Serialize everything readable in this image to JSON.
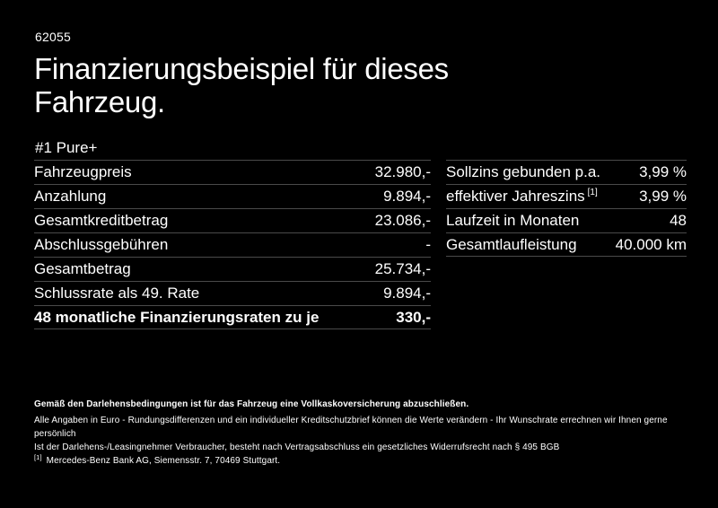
{
  "colors": {
    "background": "#000000",
    "text": "#ffffff",
    "divider": "#4a4a4a"
  },
  "header": {
    "ref_number": "62055",
    "title_line1": "Finanzierungsbeispiel für dieses",
    "title_line2": "Fahrzeug."
  },
  "variant_title": "#1 Pure+",
  "left_table": {
    "rows": [
      {
        "label": "Fahrzeugpreis",
        "value": "32.980,-"
      },
      {
        "label": "Anzahlung",
        "value": "9.894,-"
      },
      {
        "label": "Gesamtkreditbetrag",
        "value": "23.086,-"
      },
      {
        "label": "Abschlussgebühren",
        "value": "-"
      },
      {
        "label": "Gesamtbetrag",
        "value": "25.734,-"
      },
      {
        "label": "Schlussrate als 49. Rate",
        "value": "9.894,-"
      },
      {
        "label": "48 monatliche Finanzierungsraten zu je",
        "value": "330,-"
      }
    ]
  },
  "right_table": {
    "rows": [
      {
        "label": "Sollzins gebunden p.a.",
        "value": "3,99 %"
      },
      {
        "label": "effektiver Jahreszins",
        "sup": "[1]",
        "value": "3,99 %"
      },
      {
        "label": "Laufzeit in Monaten",
        "value": "48"
      },
      {
        "label": "Gesamtlaufleistung",
        "value": "40.000 km"
      }
    ]
  },
  "footer": {
    "line1": "Gemäß den Darlehensbedingungen ist für das Fahrzeug eine Vollkaskoversicherung abzuschließen.",
    "line2": "Alle Angaben in Euro - Rundungsdifferenzen und ein individueller Kreditschutzbrief können die Werte verändern - Ihr Wunschrate errechnen wir Ihnen gerne persönlich",
    "line3": "Ist der Darlehens-/Leasingnehmer Verbraucher, besteht nach Vertragsabschluss ein gesetzliches Widerrufsrecht nach § 495 BGB",
    "footnote_marker": "[1]",
    "footnote_text": "Mercedes-Benz Bank AG, Siemensstr. 7, 70469 Stuttgart."
  }
}
